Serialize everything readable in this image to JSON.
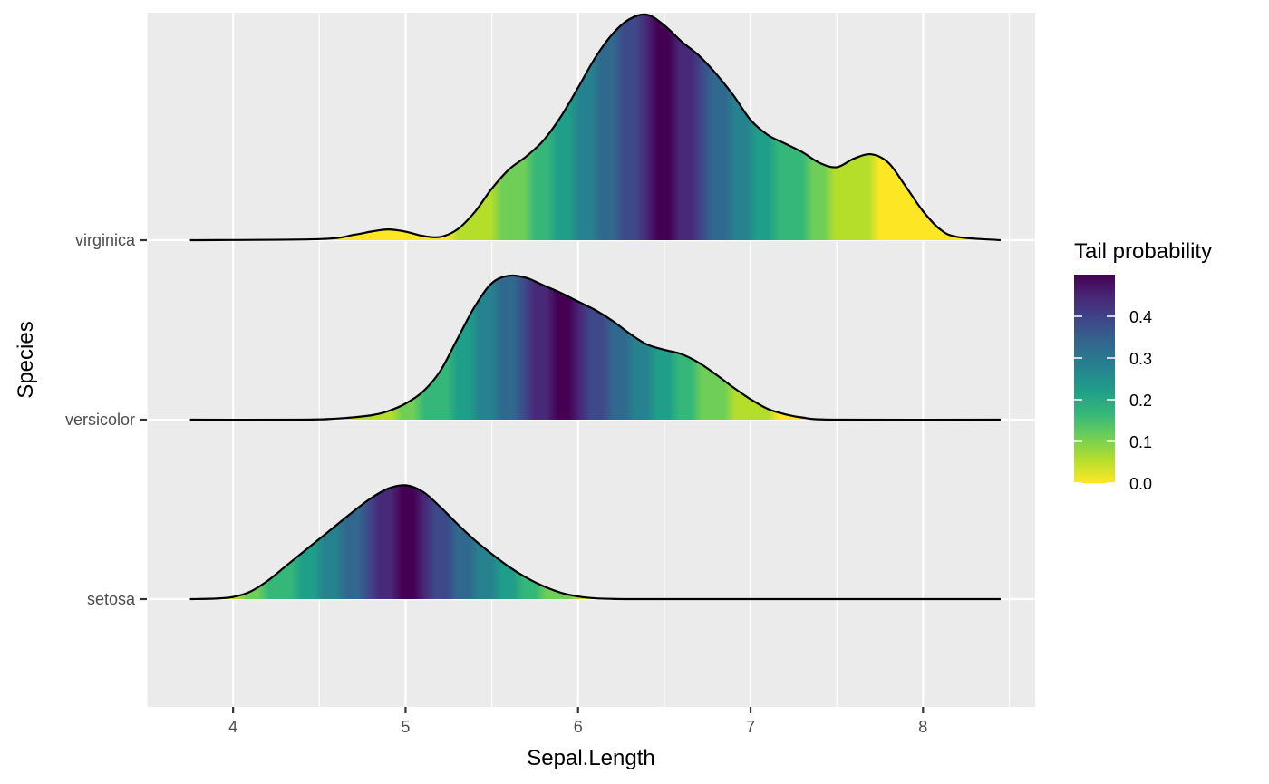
{
  "chart_data": {
    "type": "ridgeline",
    "xlabel": "Sepal.Length",
    "ylabel": "Species",
    "xlim": [
      3.5,
      8.65
    ],
    "x_ticks": [
      4,
      5,
      6,
      7,
      8
    ],
    "x_tick_labels": [
      "4",
      "5",
      "6",
      "7",
      "8"
    ],
    "categories": [
      "setosa",
      "versicolor",
      "virginica"
    ],
    "fill_variable": "Tail probability",
    "legend": {
      "title": "Tail probability",
      "position": "right",
      "ticks": [
        0.0,
        0.1,
        0.2,
        0.3,
        0.4
      ],
      "tick_labels": [
        "0.0",
        "0.1",
        "0.2",
        "0.3",
        "0.4"
      ],
      "range": [
        0.0,
        0.5
      ]
    },
    "colors": {
      "panel": "#ebebeb",
      "grid": "#ffffff",
      "outline": "#000000",
      "viridis": [
        "#fde725",
        "#b5de2b",
        "#6ece58",
        "#35b779",
        "#1f9e89",
        "#26828e",
        "#31688e",
        "#3e4989",
        "#482878",
        "#440154"
      ]
    },
    "series": [
      {
        "name": "setosa",
        "median": 5.0,
        "x": [
          3.75,
          3.9,
          4.0,
          4.1,
          4.2,
          4.3,
          4.4,
          4.5,
          4.6,
          4.7,
          4.8,
          4.9,
          5.0,
          5.1,
          5.2,
          5.3,
          5.4,
          5.5,
          5.6,
          5.7,
          5.8,
          5.9,
          6.0,
          6.1,
          6.2,
          6.3,
          6.5,
          8.45
        ],
        "density": [
          0.0,
          0.005,
          0.02,
          0.07,
          0.17,
          0.3,
          0.43,
          0.56,
          0.69,
          0.82,
          0.94,
          1.03,
          1.06,
          1.0,
          0.86,
          0.7,
          0.55,
          0.42,
          0.3,
          0.2,
          0.12,
          0.06,
          0.025,
          0.008,
          0.002,
          0.0,
          0.0,
          0.0
        ]
      },
      {
        "name": "versicolor",
        "median": 5.9,
        "x": [
          3.75,
          4.4,
          4.6,
          4.8,
          4.9,
          5.0,
          5.1,
          5.2,
          5.3,
          5.4,
          5.5,
          5.6,
          5.7,
          5.8,
          5.9,
          6.0,
          6.1,
          6.2,
          6.3,
          6.4,
          6.5,
          6.6,
          6.7,
          6.8,
          6.9,
          7.0,
          7.1,
          7.2,
          7.3,
          7.5,
          8.45
        ],
        "density": [
          0.0,
          0.0,
          0.01,
          0.04,
          0.08,
          0.15,
          0.26,
          0.45,
          0.75,
          1.05,
          1.27,
          1.34,
          1.32,
          1.25,
          1.18,
          1.1,
          1.02,
          0.92,
          0.8,
          0.7,
          0.65,
          0.61,
          0.53,
          0.42,
          0.3,
          0.19,
          0.1,
          0.05,
          0.02,
          0.0,
          0.0
        ]
      },
      {
        "name": "virginica",
        "median": 6.5,
        "x": [
          3.75,
          4.5,
          4.7,
          4.8,
          4.9,
          5.0,
          5.1,
          5.2,
          5.3,
          5.4,
          5.5,
          5.6,
          5.7,
          5.8,
          5.9,
          6.0,
          6.1,
          6.2,
          6.3,
          6.4,
          6.5,
          6.6,
          6.7,
          6.8,
          6.9,
          7.0,
          7.1,
          7.2,
          7.3,
          7.4,
          7.5,
          7.6,
          7.7,
          7.8,
          7.9,
          8.0,
          8.1,
          8.2,
          8.45
        ],
        "density": [
          0.0,
          0.01,
          0.05,
          0.08,
          0.1,
          0.08,
          0.04,
          0.03,
          0.1,
          0.26,
          0.48,
          0.66,
          0.78,
          0.93,
          1.15,
          1.42,
          1.7,
          1.92,
          2.06,
          2.1,
          2.0,
          1.85,
          1.72,
          1.55,
          1.35,
          1.12,
          0.98,
          0.9,
          0.82,
          0.72,
          0.68,
          0.76,
          0.8,
          0.72,
          0.5,
          0.27,
          0.1,
          0.03,
          0.0
        ]
      }
    ]
  }
}
